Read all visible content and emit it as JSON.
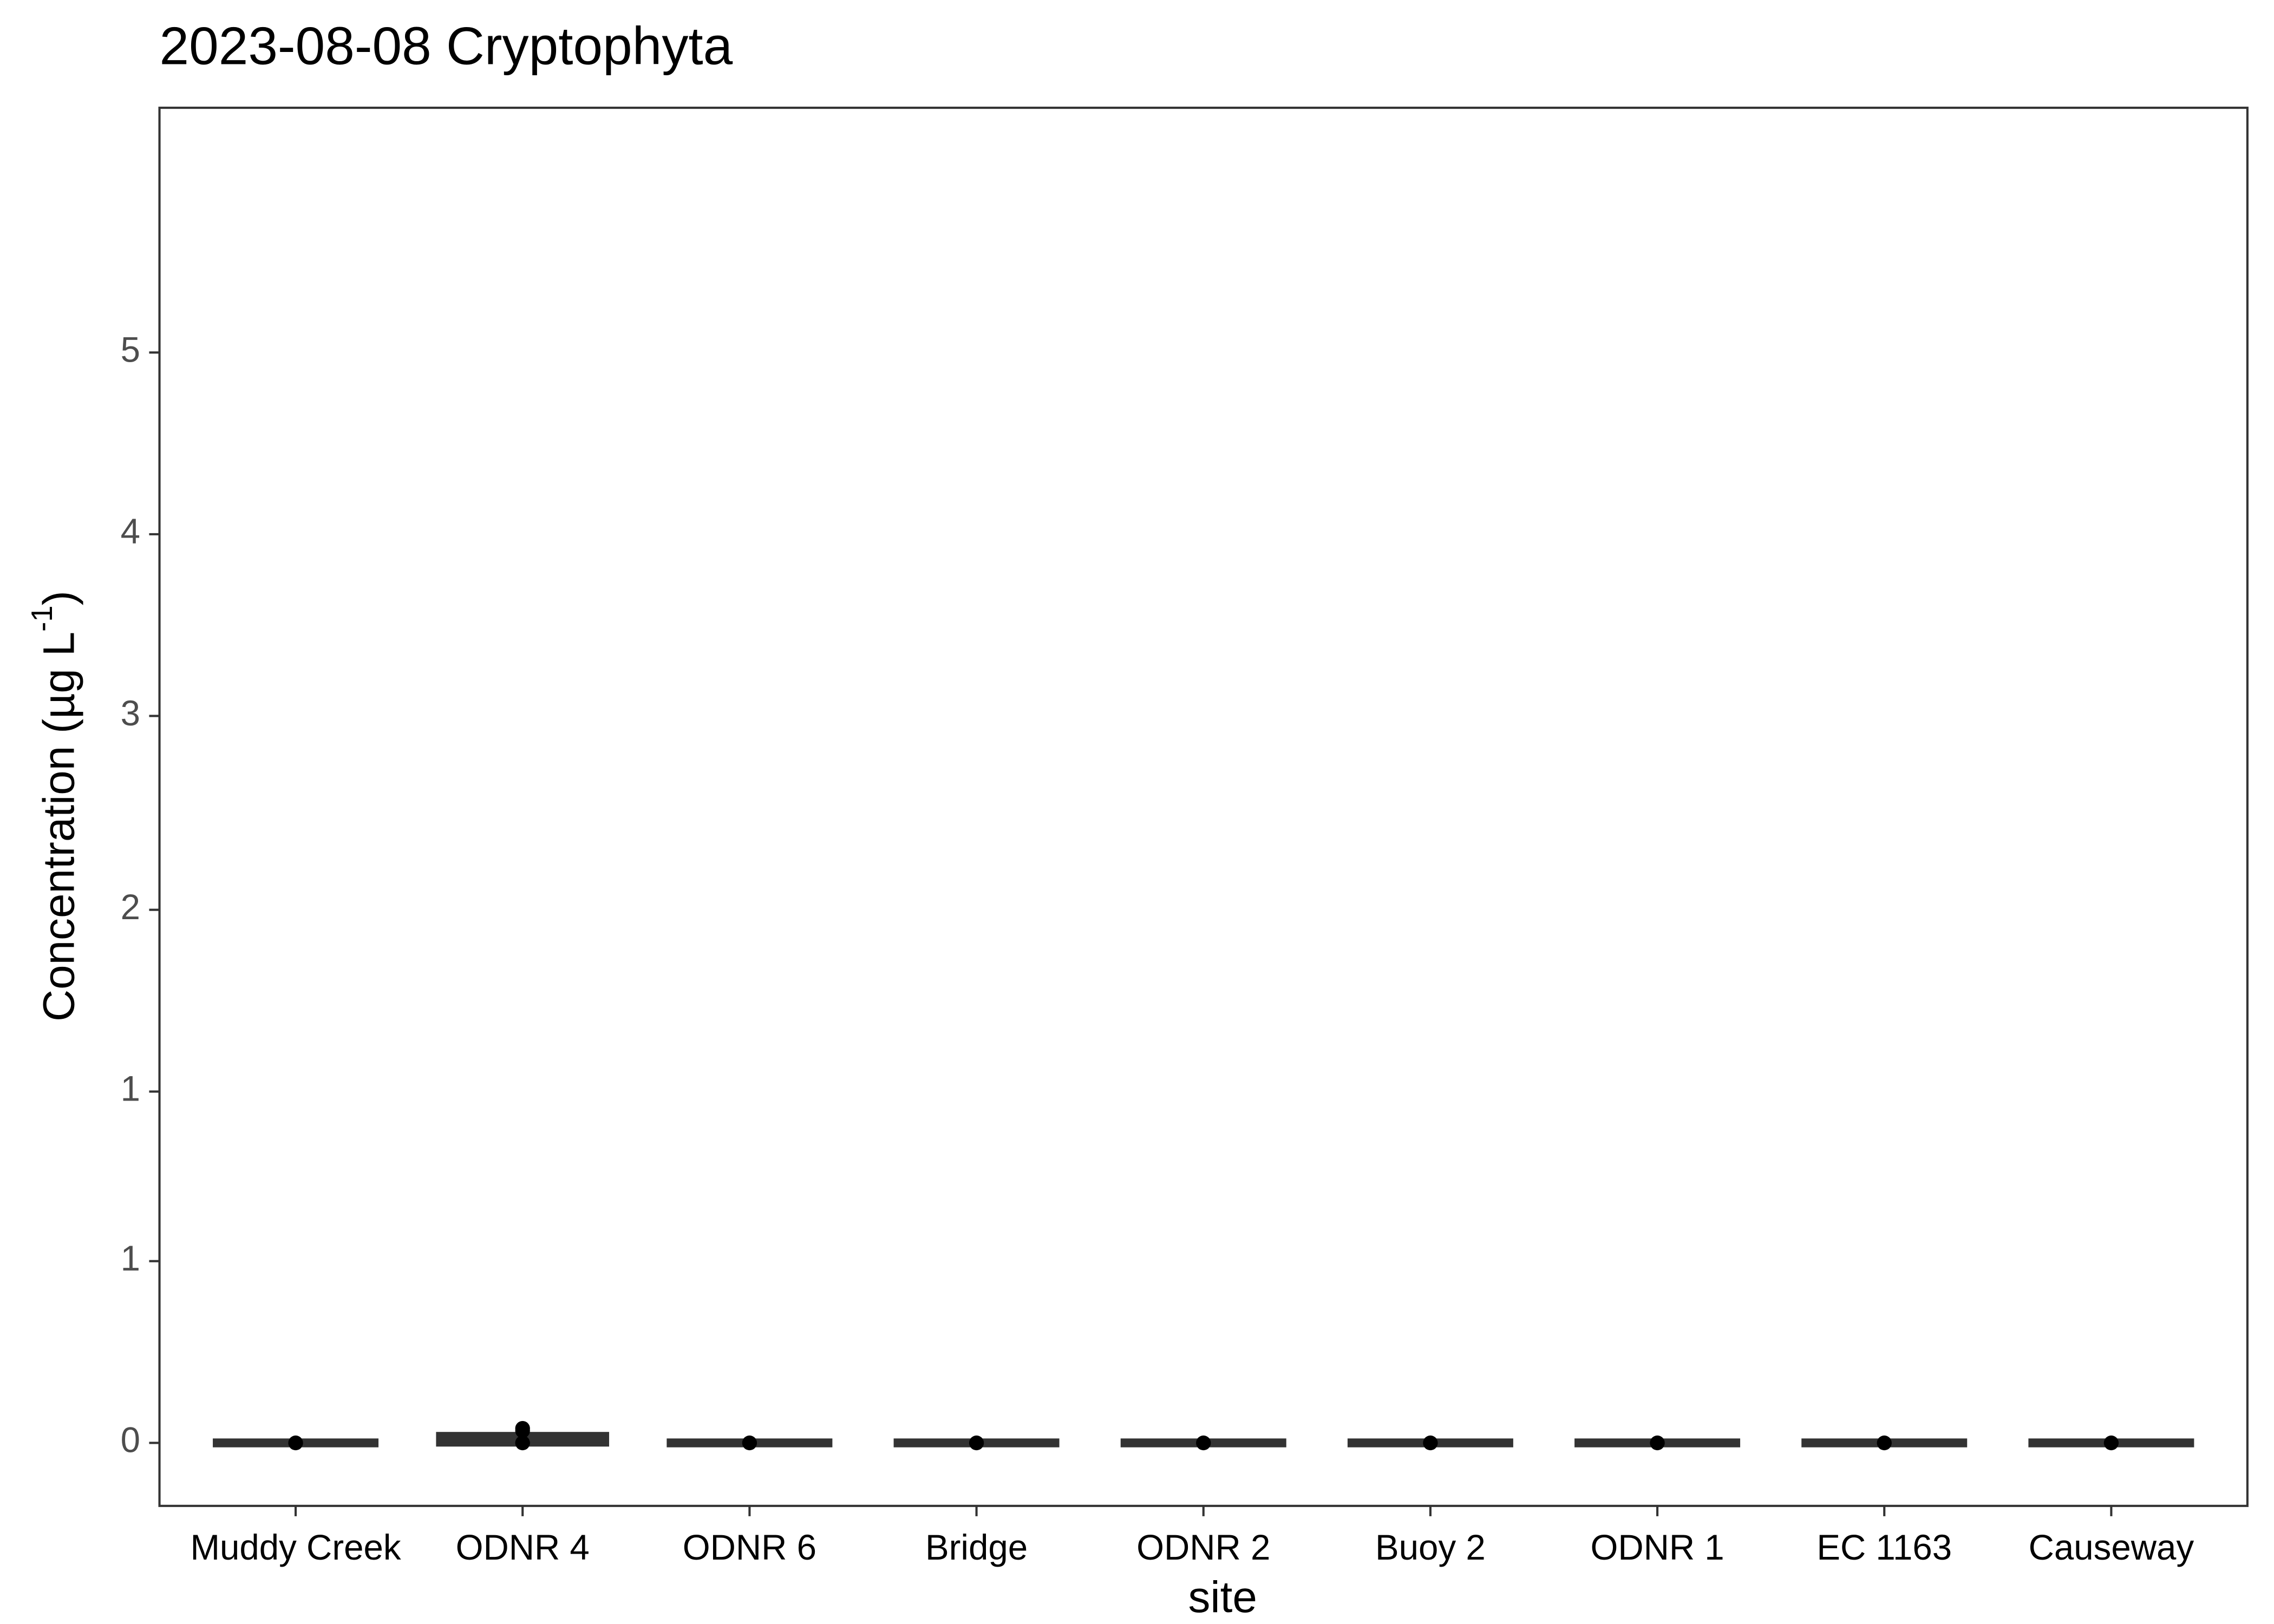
{
  "chart_data": {
    "type": "box",
    "title": "2023-08-08 Cryptophyta",
    "xlabel": "site",
    "ylabel": [
      "Concentration (µg L",
      "-1",
      ")"
    ],
    "categories": [
      "Muddy Creek",
      "ODNR 4",
      "ODNR 6",
      "Bridge",
      "ODNR 2",
      "Buoy 2",
      "ODNR 1",
      "EC 1163",
      "Causeway"
    ],
    "boxes": [
      {
        "min": 0,
        "q1": 0,
        "median": 0,
        "q3": 0,
        "max": 0
      },
      {
        "min": 0,
        "q1": 0,
        "median": 0.02,
        "q3": 0.03,
        "max": 0.04
      },
      {
        "min": 0,
        "q1": 0,
        "median": 0,
        "q3": 0,
        "max": 0
      },
      {
        "min": 0,
        "q1": 0,
        "median": 0,
        "q3": 0,
        "max": 0
      },
      {
        "min": 0,
        "q1": 0,
        "median": 0,
        "q3": 0,
        "max": 0
      },
      {
        "min": 0,
        "q1": 0,
        "median": 0,
        "q3": 0,
        "max": 0
      },
      {
        "min": 0,
        "q1": 0,
        "median": 0,
        "q3": 0,
        "max": 0
      },
      {
        "min": 0,
        "q1": 0,
        "median": 0,
        "q3": 0,
        "max": 0
      },
      {
        "min": 0,
        "q1": 0,
        "median": 0,
        "q3": 0,
        "max": 0
      }
    ],
    "points": [
      [
        0
      ],
      [
        0,
        0.06,
        0.05
      ],
      [
        0
      ],
      [
        0
      ],
      [
        0
      ],
      [
        0
      ],
      [
        0
      ],
      [
        0
      ],
      [
        0
      ]
    ],
    "box_color": "#333333",
    "point_color": "#000000",
    "ylim": [
      -0.26,
      5.51
    ],
    "yticks": [
      0,
      {
        "value": 0.75,
        "label": "1"
      },
      {
        "value": 1.45,
        "label": "1"
      },
      {
        "value": 2.2,
        "label": "2"
      },
      3,
      {
        "value": 3.75,
        "label": "4"
      },
      {
        "value": 4.5,
        "label": "5"
      }
    ]
  }
}
